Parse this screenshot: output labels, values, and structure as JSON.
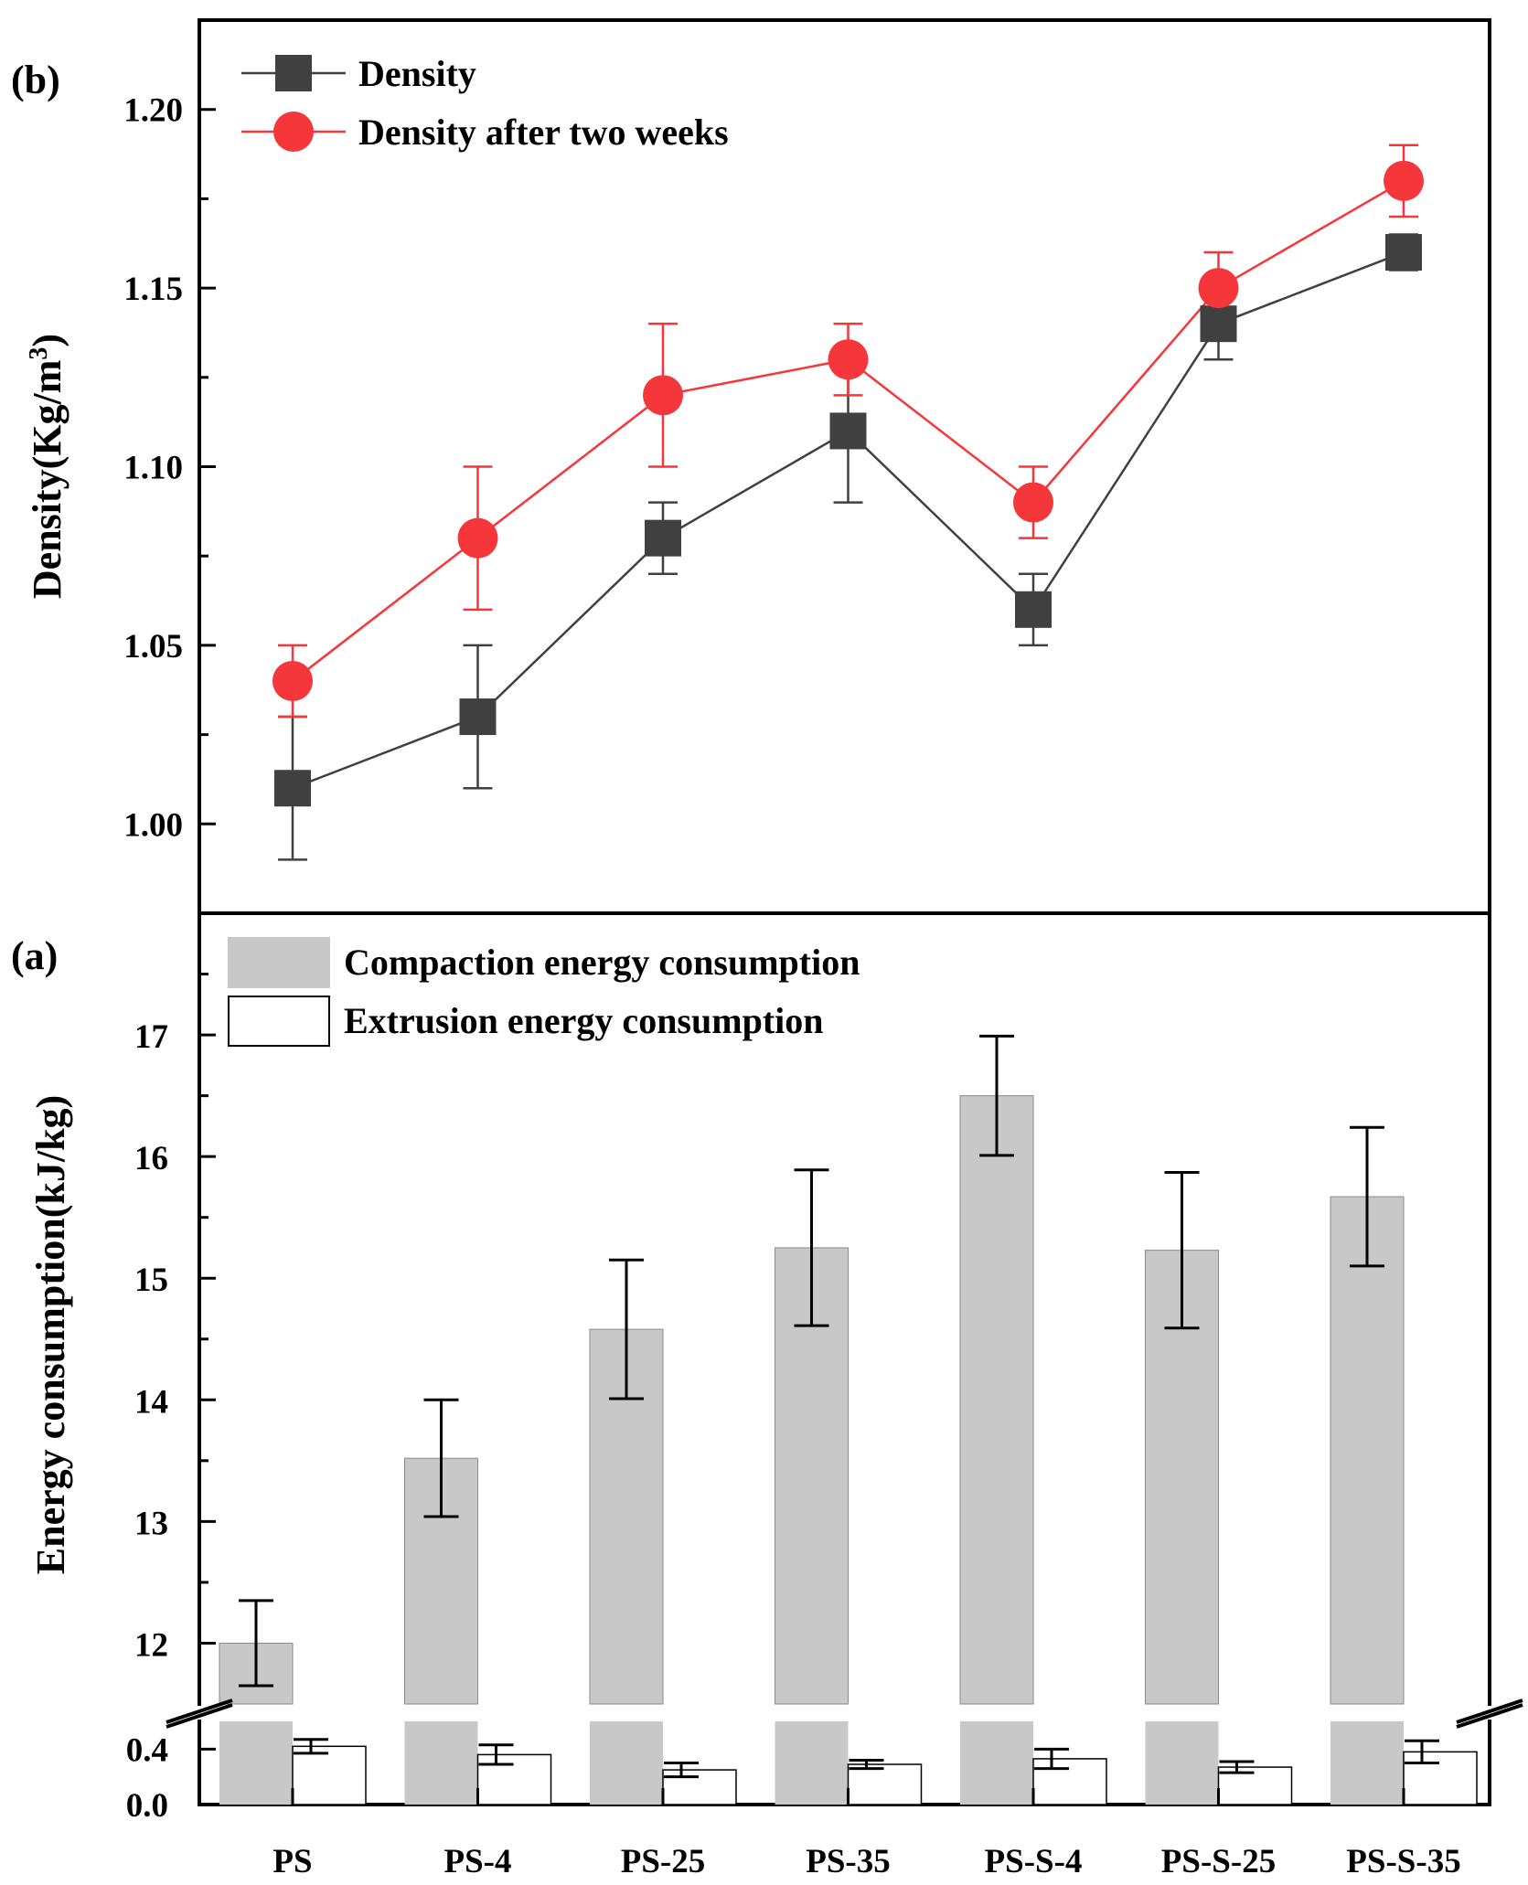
{
  "chart_data": [
    {
      "panel": "(b)",
      "type": "line",
      "ylabel": "Density(Kg/m",
      "ylabel_sup": "3",
      "ylabel_close": ")",
      "ylim": [
        0.975,
        1.225
      ],
      "yticks": [
        1.0,
        1.05,
        1.1,
        1.15,
        1.2
      ],
      "ytick_labels": [
        "1.00",
        "1.05",
        "1.10",
        "1.15",
        "1.20"
      ],
      "categories": [
        "PS",
        "PS-4",
        "PS-25",
        "PS-35",
        "PS-S-4",
        "PS-S-25",
        "PS-S-35"
      ],
      "legend_position": "top-left",
      "series": [
        {
          "name": "Density",
          "marker": "square",
          "color": "#404040",
          "values": [
            1.01,
            1.03,
            1.08,
            1.11,
            1.06,
            1.14,
            1.16
          ],
          "errors": [
            0.02,
            0.02,
            0.01,
            0.02,
            0.01,
            0.01,
            0.005
          ]
        },
        {
          "name": "Density after two weeks",
          "marker": "circle",
          "color": "#f5363a",
          "values": [
            1.04,
            1.08,
            1.12,
            1.13,
            1.09,
            1.15,
            1.18
          ],
          "errors": [
            0.01,
            0.02,
            0.02,
            0.01,
            0.01,
            0.01,
            0.01
          ]
        }
      ]
    },
    {
      "panel": "(a)",
      "type": "bar",
      "ylabel": "Energy consumption(kJ/kg)",
      "y_break": true,
      "upper_ylim": [
        11.5,
        18.0
      ],
      "upper_yticks": [
        12,
        13,
        14,
        15,
        16,
        17
      ],
      "upper_ytick_labels": [
        "12",
        "13",
        "14",
        "15",
        "16",
        "17"
      ],
      "lower_ylim": [
        0.0,
        0.6
      ],
      "lower_yticks": [
        0.0,
        0.4
      ],
      "lower_ytick_labels": [
        "0.0",
        "0.4"
      ],
      "categories": [
        "PS",
        "PS-4",
        "PS-25",
        "PS-35",
        "PS-S-4",
        "PS-S-25",
        "PS-S-35"
      ],
      "legend_position": "top-left",
      "series": [
        {
          "name": "Compaction energy consumption",
          "color": "#c8c8c8",
          "values": [
            12.0,
            13.52,
            14.58,
            15.25,
            16.5,
            15.23,
            15.67
          ],
          "errors": [
            0.35,
            0.48,
            0.57,
            0.64,
            0.49,
            0.64,
            0.57
          ]
        },
        {
          "name": "Extrusion energy consumption",
          "color": "#ffffff",
          "values": [
            0.42,
            0.36,
            0.25,
            0.29,
            0.33,
            0.27,
            0.38
          ],
          "errors": [
            0.05,
            0.07,
            0.05,
            0.03,
            0.07,
            0.04,
            0.08
          ]
        }
      ]
    }
  ]
}
